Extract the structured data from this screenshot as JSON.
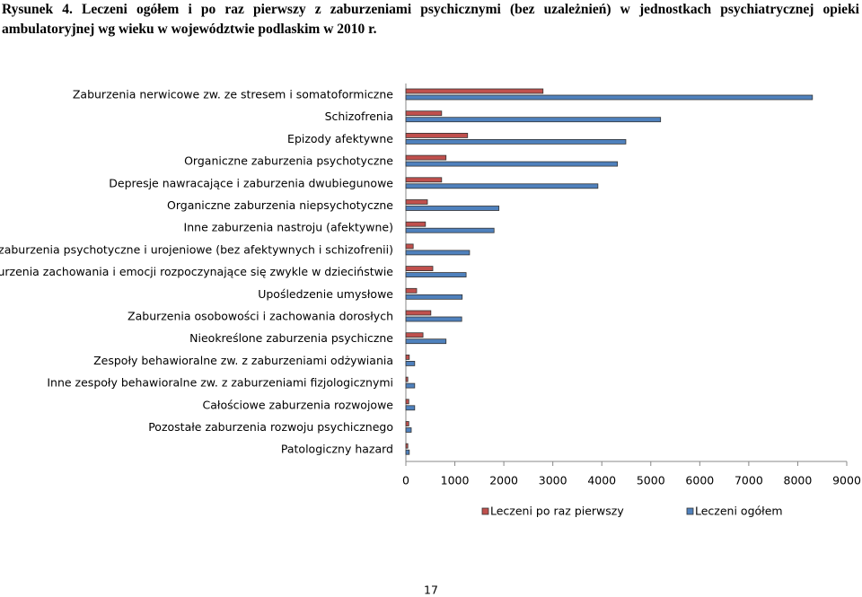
{
  "chart_data": {
    "type": "hbar",
    "title": "Rysunek 4. Leczeni ogółem i po raz pierwszy z zaburzeniami psychicznymi (bez uzależnień) w jednostkach psychiatrycznej opieki ambulatoryjnej wg wieku w województwie podlaskim w 2010 r.",
    "categories": [
      "Zaburzenia nerwicowe zw. ze stresem i somatoformiczne",
      "Schizofrenia",
      "Epizody afektywne",
      "Organiczne zaburzenia psychotyczne",
      "Depresje nawracające i zaburzenia dwubiegunowe",
      "Organiczne zaburzenia niepsychotyczne",
      "Inne zaburzenia nastroju (afektywne)",
      "Inne zaburzenia psychotyczne i urojeniowe (bez afektywnych i schizofrenii)",
      "Zaburzenia zachowania i emocji rozpoczynające się zwykle w dzieciństwie",
      "Upośledzenie umysłowe",
      "Zaburzenia osobowości i zachowania dorosłych",
      "Nieokreślone zaburzenia psychiczne",
      "Zespoły behawioralne zw. z zaburzeniami odżywiania",
      "Inne zespoły behawioralne zw. z zaburzeniami fizjologicznymi",
      "Całościowe zaburzenia rozwojowe",
      "Pozostałe zaburzenia rozwoju psychicznego",
      "Patologiczny hazard"
    ],
    "series": [
      {
        "name": "Leczeni po raz pierwszy",
        "color": "#c0504d",
        "values": [
          2800,
          730,
          1260,
          820,
          730,
          440,
          400,
          150,
          550,
          220,
          510,
          350,
          70,
          40,
          60,
          60,
          40
        ]
      },
      {
        "name": "Leczeni ogółem",
        "color": "#4f81bd",
        "values": [
          8300,
          5200,
          4490,
          4320,
          3920,
          1900,
          1800,
          1300,
          1230,
          1150,
          1140,
          820,
          180,
          180,
          180,
          110,
          70
        ]
      }
    ],
    "xlim": [
      0,
      9000
    ],
    "xticks": [
      0,
      1000,
      2000,
      3000,
      4000,
      5000,
      6000,
      7000,
      8000,
      9000
    ]
  },
  "page_number": "17"
}
